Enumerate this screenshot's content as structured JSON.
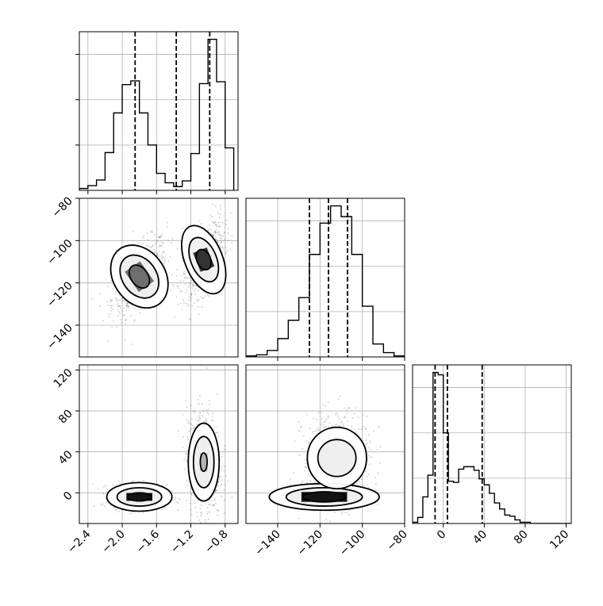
{
  "chart_data": {
    "type": "corner",
    "colors": {
      "line": "#000000",
      "grid": "#b0b0b0",
      "points": "#555555",
      "density": "#000000"
    },
    "variables": [
      {
        "range": [
          -2.5,
          -0.65
        ],
        "ticks": [
          -2.4,
          -2.0,
          -1.6,
          -1.2,
          -0.8
        ],
        "tick_labels": [
          "−2.4",
          "−2.0",
          "−1.6",
          "−1.2",
          "−0.8"
        ],
        "quantiles": [
          -1.85,
          -1.37,
          -0.98
        ]
      },
      {
        "range": [
          -155,
          -80
        ],
        "ticks": [
          -140,
          -120,
          -100,
          -80
        ],
        "tick_labels": [
          "−140",
          "−120",
          "−100",
          "−80"
        ],
        "quantiles": [
          -125,
          -116,
          -107
        ]
      },
      {
        "range": [
          -30,
          125
        ],
        "ticks": [
          0,
          40,
          80,
          120
        ],
        "tick_labels": [
          "0",
          "40",
          "80",
          "120"
        ],
        "quantiles": [
          -8,
          4,
          38
        ]
      }
    ],
    "histograms": [
      {
        "variable": 0,
        "bin_edges": [
          -2.5,
          -2.4,
          -2.3,
          -2.2,
          -2.1,
          -2.0,
          -1.9,
          -1.8,
          -1.7,
          -1.6,
          -1.5,
          -1.4,
          -1.3,
          -1.2,
          -1.1,
          -1.0,
          -0.9,
          -0.8,
          -0.7
        ],
        "counts": [
          2,
          5,
          11,
          40,
          82,
          112,
          116,
          82,
          48,
          18,
          8,
          4,
          10,
          39,
          113,
          160,
          115,
          45
        ]
      },
      {
        "variable": 1,
        "bin_edges": [
          -155,
          -150,
          -145,
          -140,
          -135,
          -130,
          -125,
          -120,
          -115,
          -110,
          -105,
          -100,
          -95,
          -90,
          -85,
          -80
        ],
        "counts": [
          1,
          2,
          6,
          17,
          34,
          55,
          95,
          124,
          140,
          130,
          95,
          47,
          12,
          4,
          1
        ]
      },
      {
        "variable": 2,
        "bin_edges": [
          -30,
          -25,
          -20,
          -15,
          -10,
          -5,
          0,
          5,
          10,
          15,
          20,
          25,
          30,
          35,
          40,
          45,
          50,
          55,
          60,
          65,
          70,
          75,
          80,
          85,
          90,
          95,
          100,
          105,
          110,
          115,
          120,
          125
        ],
        "counts": [
          1,
          5,
          22,
          40,
          125,
          123,
          75,
          35,
          34,
          45,
          47,
          47,
          44,
          37,
          32,
          25,
          17,
          12,
          7,
          6,
          3,
          1,
          1,
          0,
          0,
          0,
          0,
          0,
          0,
          0,
          0
        ]
      }
    ],
    "pairs": [
      {
        "x_variable": 0,
        "y_variable": 1,
        "clusters": [
          {
            "center": [
              -1.8,
              -117
            ],
            "sd": [
              0.16,
              9
            ],
            "corr": 0.6,
            "weight": 0.48
          },
          {
            "center": [
              -1.05,
              -109
            ],
            "sd": [
              0.12,
              9
            ],
            "corr": 0.55,
            "weight": 0.52
          }
        ],
        "contours": [
          {
            "center": [
              -1.8,
              -117
            ],
            "rx": [
              0.3,
              0.2,
              0.1
            ],
            "ry": [
              16,
              11,
              6
            ],
            "rotation_deg": -35,
            "peak": 0.55
          },
          {
            "center": [
              -1.05,
              -109
            ],
            "rx": [
              0.22,
              0.15,
              0.08
            ],
            "ry": [
              17,
              11,
              5
            ],
            "rotation_deg": -22,
            "peak": 0.85
          }
        ]
      },
      {
        "x_variable": 0,
        "y_variable": 2,
        "clusters": [
          {
            "center": [
              -1.8,
              -4
            ],
            "sd": [
              0.16,
              6
            ],
            "corr": 0.0,
            "weight": 0.52
          },
          {
            "center": [
              -1.05,
              30
            ],
            "sd": [
              0.1,
              26
            ],
            "corr": -0.1,
            "weight": 0.48
          }
        ],
        "contours": [
          {
            "center": [
              -1.8,
              -4
            ],
            "rx": [
              0.38,
              0.26,
              0.14
            ],
            "ry": [
              14,
              9,
              4
            ],
            "rotation_deg": 0,
            "peak": 1.0
          },
          {
            "center": [
              -1.05,
              30
            ],
            "rx": [
              0.18,
              0.12,
              0.04
            ],
            "ry": [
              38,
              25,
              9
            ],
            "rotation_deg": 0,
            "peak": 0.2
          }
        ]
      },
      {
        "x_variable": 1,
        "y_variable": 2,
        "clusters": [
          {
            "center": [
              -118,
              -4
            ],
            "sd": [
              8,
              5
            ],
            "corr": 0.1,
            "weight": 0.52
          },
          {
            "center": [
              -112,
              34
            ],
            "sd": [
              8,
              22
            ],
            "corr": 0.0,
            "weight": 0.48
          }
        ],
        "contours": [
          {
            "center": [
              -118,
              -4
            ],
            "rx": [
              26,
              18,
              10
            ],
            "ry": [
              13,
              9,
              5
            ],
            "rotation_deg": 0,
            "peak": 1.0
          },
          {
            "center": [
              -112,
              34
            ],
            "rx": [
              14,
              9,
              0
            ],
            "ry": [
              30,
              18,
              0
            ],
            "rotation_deg": 0,
            "peak": 0.25
          }
        ]
      }
    ]
  }
}
